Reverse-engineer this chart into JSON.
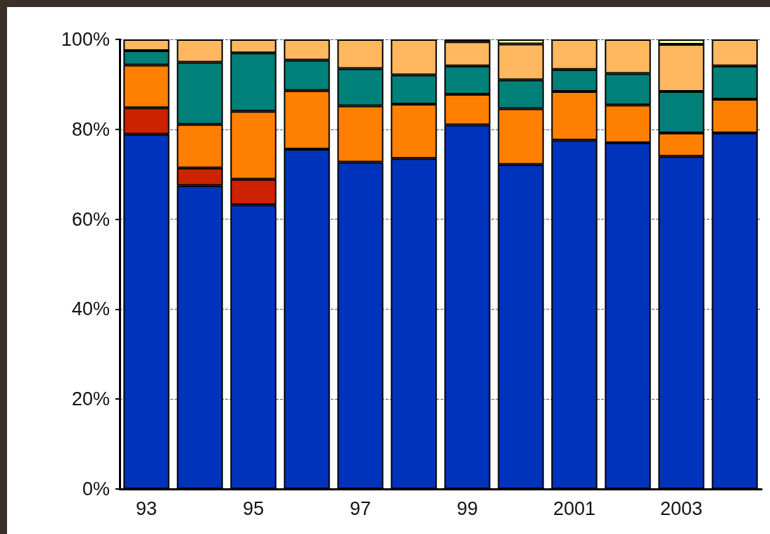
{
  "chart_data": {
    "type": "bar",
    "stacked": true,
    "categories": [
      "93",
      null,
      "95",
      null,
      "97",
      null,
      "99",
      null,
      "2001",
      null,
      "2003",
      null
    ],
    "series": [
      {
        "color": "#0033bb",
        "values": [
          78.9,
          67.5,
          63.2,
          75.6,
          72.7,
          73.5,
          81.0,
          72.2,
          77.6,
          77.0,
          74.0,
          79.2
        ]
      },
      {
        "color": "#cc2200",
        "values": [
          5.9,
          3.9,
          5.7,
          null,
          null,
          null,
          null,
          null,
          null,
          null,
          null,
          null
        ]
      },
      {
        "color": "#ff8000",
        "values": [
          9.5,
          9.7,
          15.1,
          13.0,
          12.5,
          12.1,
          6.8,
          12.4,
          10.8,
          8.4,
          5.2,
          7.5
        ]
      },
      {
        "color": "#008078",
        "values": [
          3.2,
          13.8,
          13.0,
          6.8,
          8.3,
          6.5,
          6.3,
          6.4,
          4.9,
          7.0,
          9.2,
          7.4
        ]
      },
      {
        "color": "#ffb860",
        "values": [
          2.5,
          5.1,
          3.0,
          4.6,
          6.5,
          7.9,
          5.4,
          8.0,
          6.7,
          7.6,
          10.5,
          5.9
        ]
      },
      {
        "color": "#ffffa0",
        "values": [
          null,
          null,
          null,
          null,
          null,
          null,
          0.5,
          1.0,
          null,
          null,
          1.1,
          null
        ]
      }
    ],
    "ylim": [
      0,
      100
    ],
    "yticks": [
      {
        "value": 0,
        "label": "0%"
      },
      {
        "value": 20,
        "label": "20%"
      },
      {
        "value": 40,
        "label": "40%"
      },
      {
        "value": 60,
        "label": "60%"
      },
      {
        "value": 80,
        "label": "80%"
      },
      {
        "value": 100,
        "label": "100%"
      }
    ],
    "grid": "y",
    "line_style": "dashed"
  }
}
